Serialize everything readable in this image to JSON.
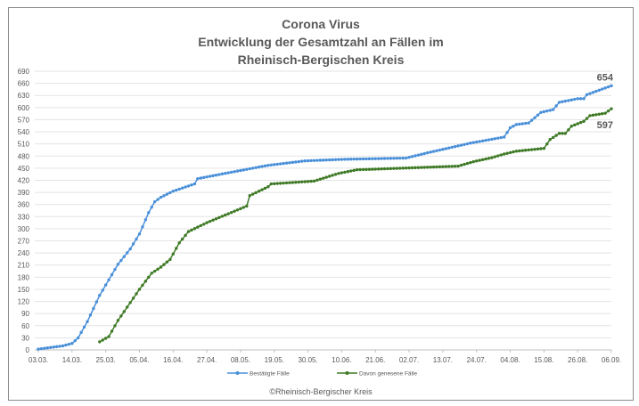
{
  "chart_data": {
    "type": "line",
    "title": [
      "Corona Virus",
      "Entwicklung der Gesamtzahl an Fällen im",
      "Rheinisch-Bergischen Kreis"
    ],
    "xlabel": "",
    "ylabel": "",
    "ylim": [
      0,
      690
    ],
    "y_ticks": [
      "0",
      "30",
      "60",
      "90",
      "120",
      "150",
      "180",
      "210",
      "240",
      "270",
      "300",
      "330",
      "360",
      "390",
      "420",
      "450",
      "480",
      "510",
      "540",
      "570",
      "600",
      "630",
      "660",
      "690"
    ],
    "x_ticks": [
      "03.03.",
      "14.03.",
      "25.03.",
      "05.04.",
      "16.04.",
      "27.04.",
      "08.05.",
      "19.05.",
      "30.05.",
      "10.06.",
      "21.06.",
      "02.07.",
      "13.07.",
      "24.07.",
      "04.08.",
      "15.08.",
      "26.08.",
      "06.09."
    ],
    "x_unit": "days since 03.03.",
    "xlim": [
      0,
      187
    ],
    "grid": true,
    "legend_position": "bottom",
    "series": [
      {
        "name": "Bestätigte Fälle",
        "color": "#4a90d9",
        "end_label": "654",
        "points": [
          [
            0,
            2
          ],
          [
            8,
            10
          ],
          [
            11,
            16
          ],
          [
            13,
            30
          ],
          [
            16,
            70
          ],
          [
            20,
            135
          ],
          [
            26,
            212
          ],
          [
            30,
            250
          ],
          [
            33,
            287
          ],
          [
            36,
            340
          ],
          [
            38,
            367
          ],
          [
            40,
            378
          ],
          [
            44,
            393
          ],
          [
            51,
            411
          ],
          [
            52,
            424
          ],
          [
            63,
            440
          ],
          [
            75,
            457
          ],
          [
            87,
            468
          ],
          [
            100,
            472
          ],
          [
            120,
            475
          ],
          [
            127,
            488
          ],
          [
            141,
            512
          ],
          [
            152,
            527
          ],
          [
            154,
            550
          ],
          [
            156,
            558
          ],
          [
            160,
            562
          ],
          [
            164,
            588
          ],
          [
            168,
            595
          ],
          [
            170,
            613
          ],
          [
            176,
            622
          ],
          [
            178,
            622
          ],
          [
            179,
            632
          ],
          [
            187,
            654
          ]
        ]
      },
      {
        "name": "Davon genesene Fälle",
        "color": "#3f7a26",
        "end_label": "597",
        "points": [
          [
            20,
            20
          ],
          [
            23,
            33
          ],
          [
            26,
            73
          ],
          [
            30,
            117
          ],
          [
            33,
            150
          ],
          [
            37,
            190
          ],
          [
            40,
            205
          ],
          [
            43,
            224
          ],
          [
            46,
            265
          ],
          [
            49,
            293
          ],
          [
            55,
            315
          ],
          [
            61,
            334
          ],
          [
            68,
            356
          ],
          [
            69,
            382
          ],
          [
            75,
            404
          ],
          [
            76,
            411
          ],
          [
            90,
            418
          ],
          [
            98,
            437
          ],
          [
            104,
            446
          ],
          [
            137,
            455
          ],
          [
            142,
            466
          ],
          [
            148,
            476
          ],
          [
            152,
            485
          ],
          [
            156,
            492
          ],
          [
            165,
            499
          ],
          [
            167,
            521
          ],
          [
            170,
            536
          ],
          [
            172,
            536
          ],
          [
            174,
            554
          ],
          [
            178,
            566
          ],
          [
            180,
            580
          ],
          [
            185,
            586
          ],
          [
            187,
            597
          ]
        ]
      }
    ],
    "footer": "©Rheinisch-Bergischer  Kreis"
  }
}
